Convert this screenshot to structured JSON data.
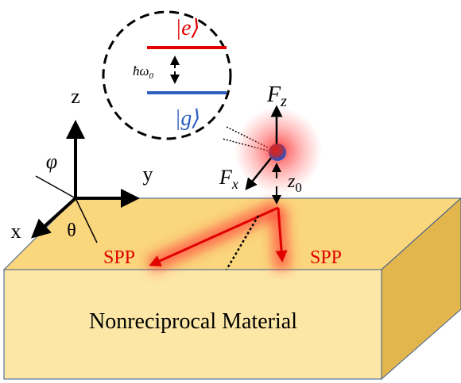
{
  "states": {
    "excited": "|e⟩",
    "ground": "|g⟩",
    "energy": {
      "base": "ħω",
      "sub": "0"
    }
  },
  "axes": {
    "z": "z",
    "y": "y",
    "x": "x",
    "phi": "φ",
    "theta": "θ"
  },
  "forces": {
    "fz": {
      "base": "F",
      "sub": "z"
    },
    "fx": {
      "base": "F",
      "sub": "x"
    },
    "height": {
      "base": "z",
      "sub": "0"
    }
  },
  "spp": [
    "SPP",
    "SPP"
  ],
  "material": "Nonreciprocal Material"
}
